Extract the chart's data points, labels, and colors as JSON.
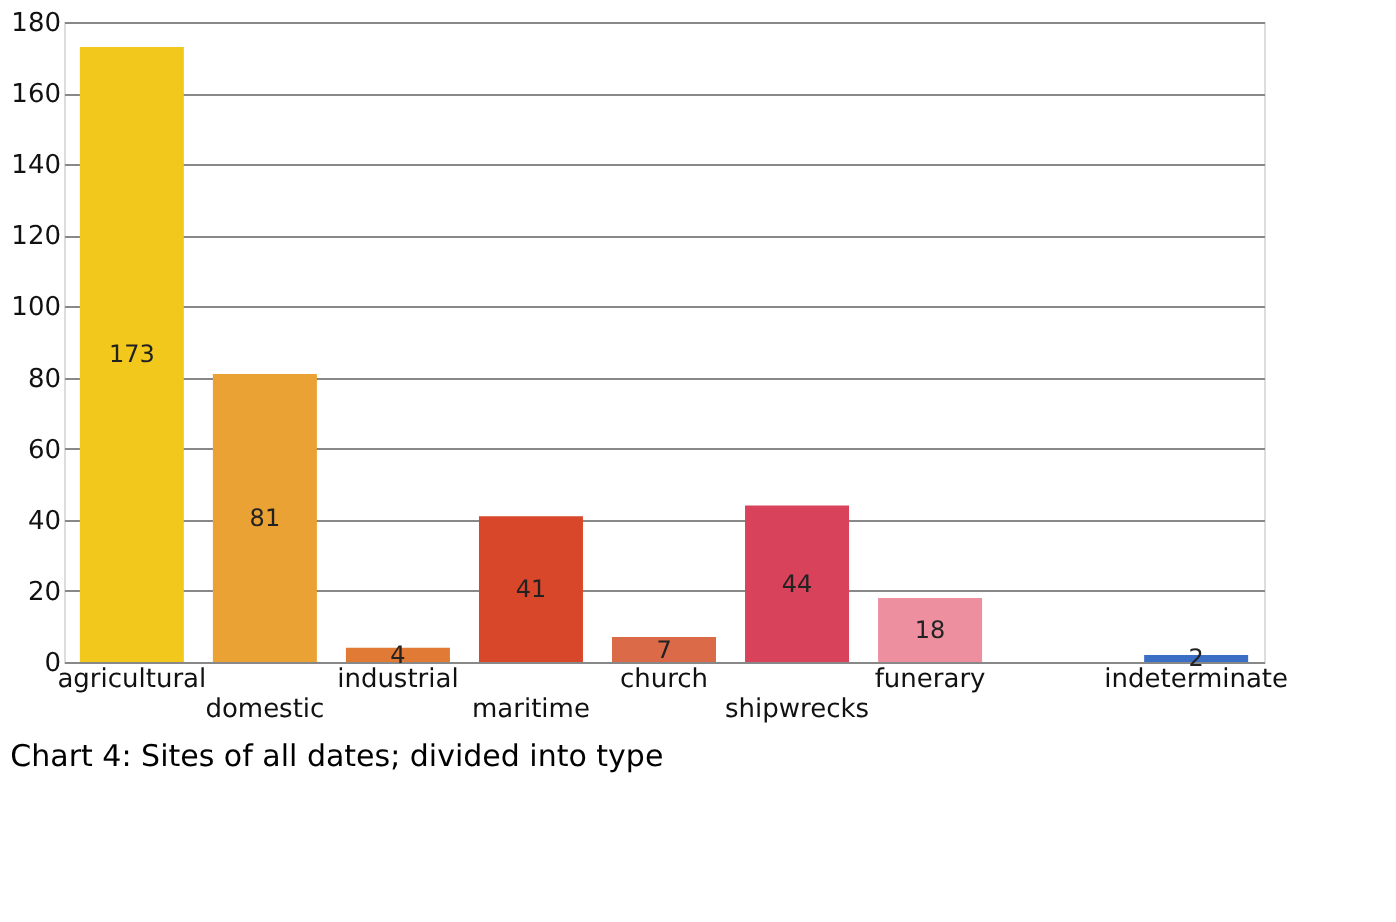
{
  "chart_data": {
    "type": "bar",
    "title": "Chart 4: Sites of all dates; divided into type",
    "categories": [
      "agricultural",
      "domestic",
      "industrial",
      "maritime",
      "church",
      "shipwrecks",
      "funerary",
      null,
      "indeterminate"
    ],
    "values": [
      173,
      81,
      4,
      41,
      7,
      44,
      18,
      null,
      2
    ],
    "colors": [
      "#f2c81c",
      "#e9a233",
      "#e07a35",
      "#d9472b",
      "#da6a48",
      "#d8425a",
      "#ee8fa0",
      "#888888",
      "#3b6fc6"
    ],
    "data_labels": true,
    "ylim": [
      0,
      180
    ],
    "yticks": [
      0,
      20,
      40,
      60,
      80,
      100,
      120,
      140,
      160,
      180
    ],
    "grid": "y"
  }
}
